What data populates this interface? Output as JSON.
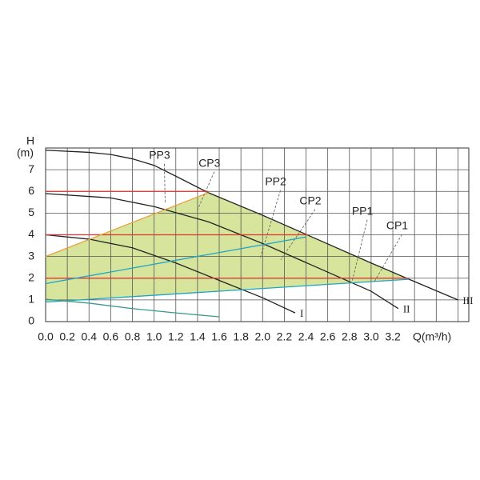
{
  "chart_data": {
    "type": "line",
    "x_label": "Q(m³/h)",
    "y_label": "H",
    "y_unit": "(m)",
    "xlim": [
      0,
      3.9
    ],
    "ylim": [
      0,
      8
    ],
    "xticks": [
      {
        "value": 0,
        "label": "0.0"
      },
      0.2,
      0.4,
      0.6,
      0.8,
      {
        "value": 1,
        "label": "1.0"
      },
      1.2,
      1.4,
      1.6,
      1.8,
      {
        "value": 2,
        "label": "2.0"
      },
      2.2,
      2.4,
      2.6,
      2.8,
      {
        "value": 3,
        "label": "3.0"
      },
      3.2
    ],
    "yticks": [
      0,
      1,
      2,
      3,
      4,
      5,
      6,
      7
    ],
    "xgrid": [
      0,
      0.2,
      0.4,
      0.6,
      0.8,
      1,
      1.2,
      1.4,
      1.6,
      1.8,
      2,
      2.2,
      2.4,
      2.6,
      2.8,
      3,
      3.2,
      3.4,
      3.6,
      3.8
    ],
    "grid": true,
    "area": {
      "color": "#cfe08a",
      "x": [
        0,
        1.5,
        3.35,
        0
      ],
      "values": [
        3.0,
        5.94,
        1.95,
        0.9
      ]
    },
    "series": [
      {
        "name": "I",
        "color": "#222222",
        "x": [
          0,
          0.4,
          0.8,
          1.2,
          1.6,
          2.0,
          2.3
        ],
        "values": [
          4.0,
          3.8,
          3.4,
          2.7,
          1.9,
          1.1,
          0.4
        ]
      },
      {
        "name": "II",
        "color": "#222222",
        "x": [
          0,
          0.6,
          1.0,
          1.5,
          2.0,
          2.5,
          3.0,
          3.25
        ],
        "values": [
          5.9,
          5.7,
          5.3,
          4.6,
          3.6,
          2.5,
          1.4,
          0.6
        ]
      },
      {
        "name": "III",
        "color": "#222222",
        "x": [
          0,
          0.4,
          0.6,
          0.8,
          1.0,
          1.2,
          1.5,
          2.0,
          2.5,
          3.0,
          3.35,
          3.8
        ],
        "values": [
          7.9,
          7.8,
          7.7,
          7.5,
          7.2,
          6.7,
          5.94,
          4.9,
          3.8,
          2.7,
          1.95,
          1.0
        ]
      },
      {
        "color": "#e03030",
        "x": [
          0,
          1.5
        ],
        "values": [
          6,
          6
        ]
      },
      {
        "color": "#e03030",
        "x": [
          0,
          2.42
        ],
        "values": [
          4,
          4
        ]
      },
      {
        "color": "#e03030",
        "x": [
          0,
          3.35
        ],
        "values": [
          2,
          2
        ]
      },
      {
        "color": "#1fa3c8",
        "x": [
          0,
          2.4
        ],
        "values": [
          1.75,
          3.9
        ]
      },
      {
        "color": "#1fa3c8",
        "x": [
          0,
          3.35
        ],
        "values": [
          0.9,
          1.95
        ]
      },
      {
        "color": "#3a9a8a",
        "x": [
          0,
          0.4,
          0.8,
          1.2,
          1.6
        ],
        "values": [
          1.03,
          0.85,
          0.6,
          0.4,
          0.22
        ]
      },
      {
        "color": "#e8a040",
        "x": [
          0,
          1.5
        ],
        "values": [
          3.0,
          5.94
        ]
      }
    ],
    "annotations": [
      {
        "text": "PP3",
        "x": 1.05,
        "y": 7.64
      },
      {
        "text": "CP3",
        "x": 1.51,
        "y": 7.27
      },
      {
        "text": "PP2",
        "x": 2.12,
        "y": 6.42
      },
      {
        "text": "CP2",
        "x": 2.44,
        "y": 5.54
      },
      {
        "text": "PP1",
        "x": 2.92,
        "y": 5.06
      },
      {
        "text": "CP1",
        "x": 3.24,
        "y": 4.39
      }
    ]
  }
}
